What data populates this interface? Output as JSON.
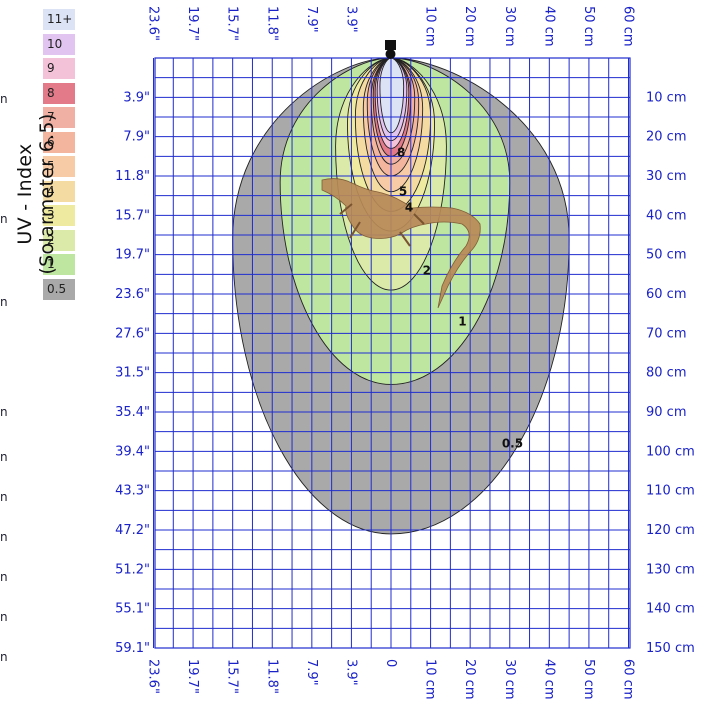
{
  "chart_data": {
    "type": "heatmap",
    "title": "",
    "ylabel": "UV - Index (Solarmeter 6.5)",
    "x_ticks_top": [
      "23.6\"",
      "19.7\"",
      "15.7\"",
      "11.8\"",
      "7.9\"",
      "3.9\"",
      "10 cm",
      "20 cm",
      "30 cm",
      "40 cm",
      "50 cm",
      "60 cm"
    ],
    "x_ticks_bottom": [
      "23.6\"",
      "19.7\"",
      "15.7\"",
      "11.8\"",
      "7.9\"",
      "3.9\"",
      "0",
      "10 cm",
      "20 cm",
      "30 cm",
      "40 cm",
      "50 cm",
      "60 cm"
    ],
    "y_ticks_left": [
      "3.9\"",
      "7.9\"",
      "11.8\"",
      "15.7\"",
      "19.7\"",
      "23.6\"",
      "27.6\"",
      "31.5\"",
      "35.4\"",
      "39.4\"",
      "43.3\"",
      "47.2\"",
      "51.2\"",
      "55.1\"",
      "59.1\""
    ],
    "y_ticks_right": [
      "10 cm",
      "20 cm",
      "30 cm",
      "40 cm",
      "50 cm",
      "60 cm",
      "70 cm",
      "80 cm",
      "90 cm",
      "100 cm",
      "110 cm",
      "120 cm",
      "130 cm",
      "140 cm",
      "150 cm"
    ],
    "x_range_cm": [
      -60,
      60
    ],
    "y_range_cm": [
      0,
      150
    ],
    "grid": true,
    "legend_placement": "left",
    "legend": [
      {
        "label": "11+",
        "color": "#dce3f5"
      },
      {
        "label": "10",
        "color": "#e1c4ef"
      },
      {
        "label": "9",
        "color": "#f3c1d8"
      },
      {
        "label": "8",
        "color": "#e27a8a"
      },
      {
        "label": "7",
        "color": "#f0b0a4"
      },
      {
        "label": "6",
        "color": "#f4b59f"
      },
      {
        "label": "5",
        "color": "#f6cba6"
      },
      {
        "label": "4",
        "color": "#f4dba1"
      },
      {
        "label": "3",
        "color": "#eeeba0"
      },
      {
        "label": "2",
        "color": "#dbeaa8"
      },
      {
        "label": "1",
        "color": "#bfe6a0"
      },
      {
        "label": "0.5",
        "color": "#a9a9a9"
      }
    ],
    "contours": [
      {
        "uv": "0.5",
        "left_cm": -40,
        "right_cm": 45,
        "depth_cm": 121,
        "color": "#a9a9a9"
      },
      {
        "uv": "1",
        "left_cm": -28,
        "right_cm": 30,
        "depth_cm": 83,
        "color": "#bfe6a0"
      },
      {
        "uv": "2",
        "left_cm": -14,
        "right_cm": 14,
        "depth_cm": 59,
        "color": "#dbeaa8"
      },
      {
        "uv": "3",
        "left_cm": -11,
        "right_cm": 11,
        "depth_cm": 44,
        "color": "#eeeba0"
      },
      {
        "uv": "4",
        "left_cm": -9,
        "right_cm": 10,
        "depth_cm": 39,
        "color": "#f4dba1"
      },
      {
        "uv": "5",
        "left_cm": -7,
        "right_cm": 8,
        "depth_cm": 34,
        "color": "#f6cba6"
      },
      {
        "uv": "6",
        "left_cm": -6,
        "right_cm": 7,
        "depth_cm": 30,
        "color": "#f4b59f"
      },
      {
        "uv": "7",
        "left_cm": -5,
        "right_cm": 6,
        "depth_cm": 27,
        "color": "#f0b0a4"
      },
      {
        "uv": "8",
        "left_cm": -4.5,
        "right_cm": 5,
        "depth_cm": 25,
        "color": "#e27a8a"
      },
      {
        "uv": "9",
        "left_cm": -4,
        "right_cm": 4.5,
        "depth_cm": 23,
        "color": "#f3c1d8"
      },
      {
        "uv": "10",
        "left_cm": -3.5,
        "right_cm": 4,
        "depth_cm": 21,
        "color": "#e1c4ef"
      },
      {
        "uv": "11+",
        "left_cm": -2.8,
        "right_cm": 3.2,
        "depth_cm": 19,
        "color": "#dce3f5"
      }
    ],
    "contour_labels": [
      {
        "text": "8",
        "x_cm": 1.5,
        "y_cm": 25
      },
      {
        "text": "5",
        "x_cm": 2,
        "y_cm": 35
      },
      {
        "text": "4",
        "x_cm": 3.5,
        "y_cm": 39
      },
      {
        "text": "2",
        "x_cm": 8,
        "y_cm": 55
      },
      {
        "text": "1",
        "x_cm": 17,
        "y_cm": 68
      },
      {
        "text": "0.5",
        "x_cm": 28,
        "y_cm": 99
      }
    ]
  },
  "colors": {
    "grid": "#1f2ccf",
    "axis_text": "#1a22c8",
    "contour_stroke": "#222222"
  },
  "edge_glyph": "n"
}
